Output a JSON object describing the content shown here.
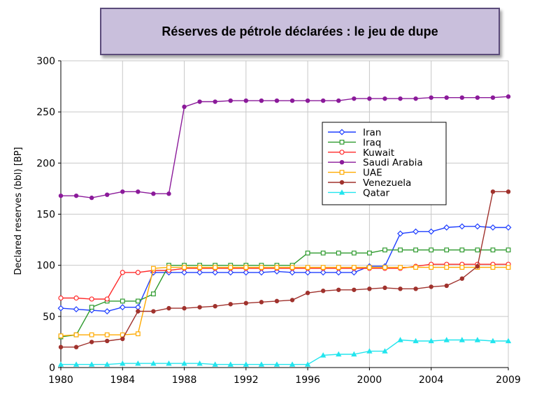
{
  "banner": {
    "title": "Réserves de pétrole déclarées : le jeu de dupe"
  },
  "chart_data": {
    "type": "line",
    "title": "Réserves de pétrole déclarées : le jeu de dupe",
    "xlabel": "",
    "ylabel": "Declared reserves (bbl) [BP]",
    "xlim": [
      1980,
      2009
    ],
    "ylim": [
      0,
      300
    ],
    "x_ticks": [
      1980,
      1984,
      1988,
      1992,
      1996,
      2000,
      2004,
      2009
    ],
    "y_ticks": [
      0,
      50,
      100,
      150,
      200,
      250,
      300
    ],
    "grid": true,
    "legend_position": "top-right",
    "x": [
      1980,
      1981,
      1982,
      1983,
      1984,
      1985,
      1986,
      1987,
      1988,
      1989,
      1990,
      1991,
      1992,
      1993,
      1994,
      1995,
      1996,
      1997,
      1998,
      1999,
      2000,
      2001,
      2002,
      2003,
      2004,
      2005,
      2006,
      2007,
      2008,
      2009
    ],
    "series": [
      {
        "name": "Iran",
        "color": "#1f3fff",
        "marker": "diamond",
        "values": [
          58,
          57,
          56,
          55,
          59,
          59,
          93,
          93,
          93,
          93,
          93,
          93,
          93,
          93,
          94,
          93,
          93,
          93,
          93,
          93,
          99,
          99,
          131,
          133,
          133,
          137,
          138,
          138,
          137,
          137
        ]
      },
      {
        "name": "Iraq",
        "color": "#2e9a2e",
        "marker": "square",
        "values": [
          30,
          32,
          59,
          65,
          65,
          65,
          72,
          100,
          100,
          100,
          100,
          100,
          100,
          100,
          100,
          100,
          112,
          112,
          112,
          112,
          112,
          115,
          115,
          115,
          115,
          115,
          115,
          115,
          115,
          115
        ]
      },
      {
        "name": "Kuwait",
        "color": "#ff2a2a",
        "marker": "circle",
        "values": [
          68,
          68,
          67,
          67,
          93,
          93,
          95,
          95,
          97,
          97,
          97,
          97,
          97,
          97,
          97,
          97,
          97,
          97,
          97,
          97,
          97,
          97,
          97,
          99,
          101,
          101,
          101,
          101,
          101,
          101
        ]
      },
      {
        "name": "Saudi Arabia",
        "color": "#8b1a9a",
        "marker": "dot",
        "values": [
          168,
          168,
          166,
          169,
          172,
          172,
          170,
          170,
          255,
          260,
          260,
          261,
          261,
          261,
          261,
          261,
          261,
          261,
          261,
          263,
          263,
          263,
          263,
          263,
          264,
          264,
          264,
          264,
          264,
          265
        ]
      },
      {
        "name": "UAE",
        "color": "#ffaa00",
        "marker": "square",
        "values": [
          31,
          32,
          32,
          32,
          32,
          33,
          97,
          98,
          98,
          98,
          98,
          98,
          98,
          98,
          98,
          98,
          98,
          98,
          98,
          98,
          98,
          98,
          98,
          98,
          98,
          98,
          98,
          98,
          98,
          98
        ]
      },
      {
        "name": "Venezuela",
        "color": "#a0322d",
        "marker": "dot",
        "values": [
          20,
          20,
          25,
          26,
          28,
          55,
          55,
          58,
          58,
          59,
          60,
          62,
          63,
          64,
          65,
          66,
          73,
          75,
          76,
          76,
          77,
          78,
          77,
          77,
          79,
          80,
          87,
          99,
          172,
          172
        ]
      },
      {
        "name": "Qatar",
        "color": "#22e5ee",
        "marker": "triangle",
        "values": [
          3,
          3,
          3,
          3,
          4,
          4,
          4,
          4,
          4,
          4,
          3,
          3,
          3,
          3,
          3,
          3,
          3,
          12,
          13,
          13,
          16,
          16,
          27,
          26,
          26,
          27,
          27,
          27,
          26,
          26
        ]
      }
    ]
  }
}
